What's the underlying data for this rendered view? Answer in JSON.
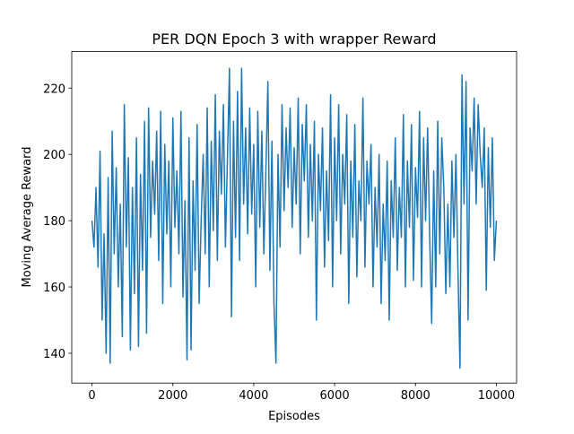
{
  "chart_data": {
    "type": "line",
    "title": "PER DQN Epoch 3 with wrapper Reward",
    "xlabel": "Episodes",
    "ylabel": "Moving Average Reward",
    "xlim": [
      -500,
      10500
    ],
    "ylim": [
      131,
      231
    ],
    "xticks": [
      0,
      2000,
      4000,
      6000,
      8000,
      10000
    ],
    "yticks": [
      140,
      160,
      180,
      200,
      220
    ],
    "x": [
      0,
      50,
      100,
      150,
      200,
      250,
      300,
      350,
      400,
      450,
      500,
      550,
      600,
      650,
      700,
      750,
      800,
      850,
      900,
      950,
      1000,
      1050,
      1100,
      1150,
      1200,
      1250,
      1300,
      1350,
      1400,
      1450,
      1500,
      1550,
      1600,
      1650,
      1700,
      1750,
      1800,
      1850,
      1900,
      1950,
      2000,
      2050,
      2100,
      2150,
      2200,
      2250,
      2300,
      2350,
      2400,
      2450,
      2500,
      2550,
      2600,
      2650,
      2700,
      2750,
      2800,
      2850,
      2900,
      2950,
      3000,
      3050,
      3100,
      3150,
      3200,
      3250,
      3300,
      3350,
      3400,
      3450,
      3500,
      3550,
      3600,
      3650,
      3700,
      3750,
      3800,
      3850,
      3900,
      3950,
      4000,
      4050,
      4100,
      4150,
      4200,
      4250,
      4300,
      4350,
      4400,
      4450,
      4500,
      4550,
      4600,
      4650,
      4700,
      4750,
      4800,
      4850,
      4900,
      4950,
      5000,
      5050,
      5100,
      5150,
      5200,
      5250,
      5300,
      5350,
      5400,
      5450,
      5500,
      5550,
      5600,
      5650,
      5700,
      5750,
      5800,
      5850,
      5900,
      5950,
      6000,
      6050,
      6100,
      6150,
      6200,
      6250,
      6300,
      6350,
      6400,
      6450,
      6500,
      6550,
      6600,
      6650,
      6700,
      6750,
      6800,
      6850,
      6900,
      6950,
      7000,
      7050,
      7100,
      7150,
      7200,
      7250,
      7300,
      7350,
      7400,
      7450,
      7500,
      7550,
      7600,
      7650,
      7700,
      7750,
      7800,
      7850,
      7900,
      7950,
      8000,
      8050,
      8100,
      8150,
      8200,
      8250,
      8300,
      8350,
      8400,
      8450,
      8500,
      8550,
      8600,
      8650,
      8700,
      8750,
      8800,
      8850,
      8900,
      8950,
      9000,
      9050,
      9100,
      9150,
      9200,
      9250,
      9300,
      9350,
      9400,
      9450,
      9500,
      9550,
      9600,
      9650,
      9700,
      9750,
      9800,
      9850,
      9900,
      9950,
      10000
    ],
    "series": [
      {
        "color": "#1f77b4",
        "values": [
          180,
          172,
          190,
          166,
          201,
          150,
          176,
          140,
          193,
          137,
          207,
          170,
          196,
          160,
          185,
          145,
          215,
          172,
          199,
          141,
          190,
          158,
          205,
          142,
          194,
          165,
          210,
          146,
          214,
          175,
          198,
          182,
          207,
          168,
          213,
          155,
          203,
          176,
          198,
          160,
          211,
          178,
          195,
          170,
          213,
          157,
          186,
          138,
          205,
          141,
          192,
          165,
          209,
          155,
          180,
          200,
          170,
          214,
          160,
          204,
          177,
          218,
          168,
          207,
          188,
          215,
          172,
          199,
          226,
          151,
          210,
          175,
          219,
          168,
          226,
          185,
          208,
          176,
          214,
          182,
          203,
          160,
          213,
          178,
          207,
          170,
          195,
          222,
          165,
          204,
          155,
          137,
          200,
          172,
          215,
          183,
          208,
          190,
          214,
          178,
          202,
          185,
          217,
          170,
          209,
          192,
          215,
          175,
          203,
          180,
          210,
          150,
          200,
          183,
          208,
          166,
          195,
          174,
          218,
          160,
          205,
          180,
          215,
          170,
          200,
          185,
          212,
          155,
          198,
          175,
          209,
          163,
          192,
          180,
          217,
          166,
          198,
          185,
          203,
          160,
          190,
          172,
          200,
          155,
          185,
          168,
          198,
          150,
          192,
          175,
          205,
          165,
          190,
          175,
          212,
          160,
          198,
          178,
          209,
          162,
          196,
          181,
          213,
          160,
          205,
          180,
          208,
          176,
          149,
          195,
          160,
          210,
          170,
          205,
          190,
          158,
          185,
          160,
          198,
          175,
          200,
          165,
          135.5,
          224,
          185,
          222,
          150,
          208,
          195,
          217,
          185,
          215,
          200,
          190,
          208,
          159,
          202,
          178,
          205,
          168,
          180
        ]
      }
    ]
  }
}
